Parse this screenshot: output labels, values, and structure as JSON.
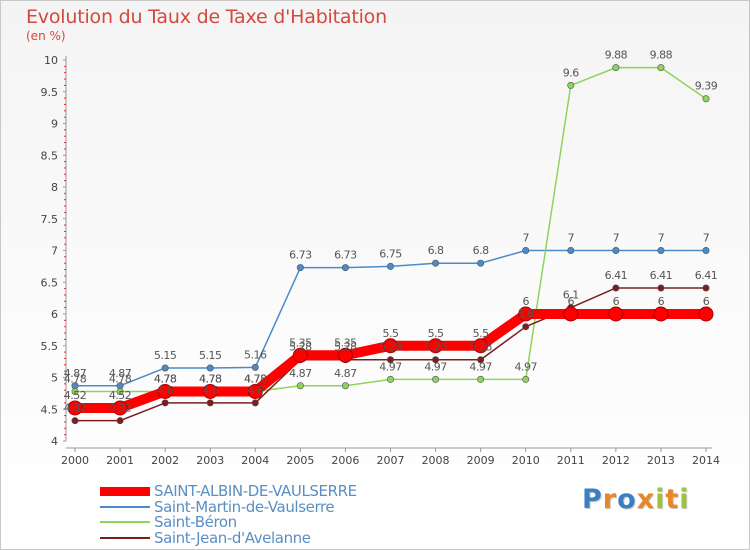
{
  "chart_data": {
    "type": "line",
    "title": "Evolution du Taux de Taxe d'Habitation",
    "subtitle": "(en %)",
    "xlabel": "",
    "ylabel": "",
    "x": [
      "2000",
      "2001",
      "2002",
      "2003",
      "2004",
      "2005",
      "2006",
      "2007",
      "2008",
      "2009",
      "2010",
      "2011",
      "2012",
      "2013",
      "2014"
    ],
    "ylim": [
      4,
      10
    ],
    "yticks": [
      "4",
      "4.5",
      "5",
      "5.5",
      "6",
      "6.5",
      "7",
      "7.5",
      "8",
      "8.5",
      "9",
      "9.5",
      "10"
    ],
    "series": [
      {
        "name": "SAINT-ALBIN-DE-VAULSERRE",
        "color": "#ff0000",
        "values": [
          4.52,
          4.52,
          4.78,
          4.78,
          4.78,
          5.35,
          5.35,
          5.5,
          5.5,
          5.5,
          6,
          6,
          6,
          6,
          6
        ],
        "labels": [
          "4.52",
          "4.52",
          "4.78",
          "4.78",
          "4.78",
          "5.35",
          "5.35",
          "5.5",
          "5.5",
          "5.5",
          "6",
          "6",
          "6",
          "6",
          "6"
        ]
      },
      {
        "name": "Saint-Martin-de-Vaulserre",
        "color": "#4a8bc8",
        "values": [
          4.87,
          4.87,
          5.15,
          5.15,
          5.16,
          6.73,
          6.73,
          6.75,
          6.8,
          6.8,
          7,
          7,
          7,
          7,
          7
        ],
        "labels": [
          "4.87",
          "4.87",
          "5.15",
          "5.15",
          "5.16",
          "6.73",
          "6.73",
          "6.75",
          "6.8",
          "6.8",
          "7",
          "7",
          "7",
          "7",
          "7"
        ]
      },
      {
        "name": "Saint-Béron",
        "color": "#8fd45a",
        "values": [
          4.78,
          4.78,
          4.78,
          4.78,
          4.78,
          4.87,
          4.87,
          4.97,
          4.97,
          4.97,
          4.97,
          9.6,
          9.88,
          9.88,
          9.39
        ],
        "labels": [
          "4.78",
          "4.78",
          "4.78",
          "4.78",
          "4.78",
          "4.87",
          "4.87",
          "4.97",
          "4.97",
          "4.97",
          "4.97",
          "9.6",
          "9.88",
          "9.88",
          "9.39"
        ]
      },
      {
        "name": "Saint-Jean-d'Avelanne",
        "color": "#7a1e1e",
        "values": [
          4.32,
          4.32,
          4.6,
          4.6,
          4.6,
          5.28,
          5.28,
          5.28,
          5.28,
          5.28,
          5.8,
          6.1,
          6.41,
          6.41,
          6.41
        ],
        "labels": [
          "4.32",
          "4.32",
          "4.6",
          "4.6",
          "4.6",
          "5.28",
          "5.28",
          "5.28",
          "5.28",
          "5.28",
          "5.8",
          "6.1",
          "6.41",
          "6.41",
          "6.41"
        ]
      }
    ],
    "legend_position": "bottom-left"
  },
  "legend": {
    "items": [
      {
        "label": "SAINT-ALBIN-DE-VAULSERRE",
        "color": "#ff0000"
      },
      {
        "label": "Saint-Martin-de-Vaulserre",
        "color": "#4a8bc8"
      },
      {
        "label": "Saint-Béron",
        "color": "#8fd45a"
      },
      {
        "label": "Saint-Jean-d'Avelanne",
        "color": "#7a1e1e"
      }
    ]
  },
  "logo": {
    "letters": [
      "P",
      "r",
      "o",
      "x",
      "i",
      "t",
      "i"
    ],
    "colors": [
      "#3a7fc4",
      "#e8862a",
      "#3a7fc4",
      "#e8862a",
      "#9cc43a",
      "#e8862a",
      "#9cc43a"
    ]
  }
}
